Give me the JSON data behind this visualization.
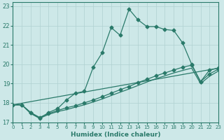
{
  "xlabel": "Humidex (Indice chaleur)",
  "xlim": [
    0,
    23
  ],
  "ylim": [
    17,
    23.2
  ],
  "yticks": [
    17,
    18,
    19,
    20,
    21,
    22,
    23
  ],
  "xticks": [
    0,
    1,
    2,
    3,
    4,
    5,
    6,
    7,
    8,
    9,
    10,
    11,
    12,
    13,
    14,
    15,
    16,
    17,
    18,
    19,
    20,
    21,
    22,
    23
  ],
  "bg_color": "#cde8e8",
  "grid_color": "#b0d0d0",
  "line_color": "#2a7a6a",
  "line1_x": [
    0,
    1,
    2,
    3,
    4,
    5,
    6,
    7,
    8,
    9,
    10,
    11,
    12,
    13,
    14,
    15,
    16,
    17,
    18,
    19,
    20,
    21,
    22,
    23
  ],
  "line1_y": [
    17.9,
    17.9,
    17.5,
    17.2,
    17.5,
    17.7,
    18.15,
    18.5,
    18.6,
    19.85,
    20.6,
    21.9,
    21.5,
    22.85,
    22.3,
    21.95,
    21.95,
    21.8,
    21.75,
    21.1,
    20.0,
    19.1,
    19.7,
    19.8
  ],
  "line2_x": [
    0,
    1,
    2,
    3,
    4,
    5,
    6,
    7,
    8,
    9,
    10,
    11,
    12,
    13,
    14,
    15,
    16,
    17,
    18,
    19,
    20,
    21,
    22,
    23
  ],
  "line2_y": [
    17.9,
    17.9,
    17.5,
    17.25,
    17.45,
    17.6,
    17.75,
    17.85,
    18.0,
    18.15,
    18.32,
    18.5,
    18.68,
    18.85,
    19.05,
    19.22,
    19.4,
    19.55,
    19.7,
    19.85,
    19.95,
    19.1,
    19.5,
    19.75
  ],
  "line3_x": [
    0,
    1,
    2,
    3,
    4,
    5,
    6,
    7,
    8,
    9,
    10,
    11,
    12,
    13,
    14,
    15,
    16,
    17,
    18,
    19,
    20,
    21,
    22,
    23
  ],
  "line3_y": [
    17.9,
    17.9,
    17.45,
    17.2,
    17.4,
    17.55,
    17.65,
    17.78,
    17.9,
    18.05,
    18.2,
    18.38,
    18.55,
    18.72,
    18.9,
    19.08,
    19.25,
    19.4,
    19.55,
    19.68,
    19.8,
    19.0,
    19.38,
    19.65
  ],
  "line4_x": [
    0,
    23
  ],
  "line4_y": [
    17.9,
    19.8
  ],
  "marker_size": 2.5
}
